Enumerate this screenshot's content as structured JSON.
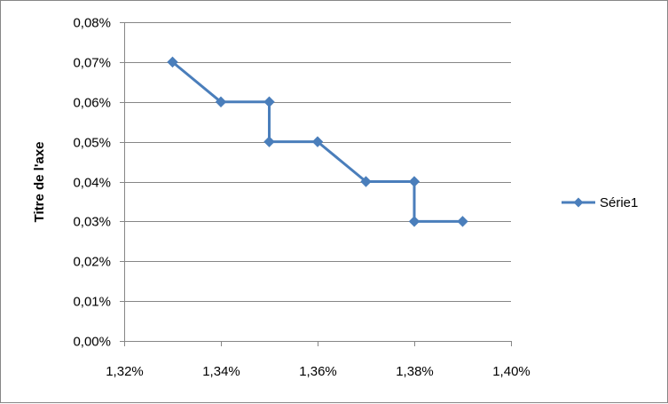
{
  "chart_data": {
    "type": "line",
    "title": "",
    "xlabel": "",
    "ylabel": "Titre de l'axe",
    "xlim": [
      0.0132,
      0.014
    ],
    "ylim": [
      0,
      0.0008
    ],
    "x_ticks": [
      {
        "value": 0.0132,
        "label": "1,32%"
      },
      {
        "value": 0.0134,
        "label": "1,34%"
      },
      {
        "value": 0.0136,
        "label": "1,36%"
      },
      {
        "value": 0.0138,
        "label": "1,38%"
      },
      {
        "value": 0.014,
        "label": "1,40%"
      }
    ],
    "y_ticks": [
      {
        "value": 0.0,
        "label": "0,00%"
      },
      {
        "value": 0.0001,
        "label": "0,01%"
      },
      {
        "value": 0.0002,
        "label": "0,02%"
      },
      {
        "value": 0.0003,
        "label": "0,03%"
      },
      {
        "value": 0.0004,
        "label": "0,04%"
      },
      {
        "value": 0.0005,
        "label": "0,05%"
      },
      {
        "value": 0.0006,
        "label": "0,06%"
      },
      {
        "value": 0.0007,
        "label": "0,07%"
      },
      {
        "value": 0.0008,
        "label": "0,08%"
      }
    ],
    "grid": "horizontal",
    "legend_position": "right",
    "series": [
      {
        "name": "Série1",
        "color": "#4a7ebb",
        "marker": "diamond",
        "x": [
          0.0133,
          0.0134,
          0.0135,
          0.0135,
          0.0136,
          0.0137,
          0.0138,
          0.0138,
          0.0139
        ],
        "y": [
          0.0007,
          0.0006,
          0.0006,
          0.0005,
          0.0005,
          0.0004,
          0.0004,
          0.0003,
          0.0003
        ]
      }
    ]
  }
}
